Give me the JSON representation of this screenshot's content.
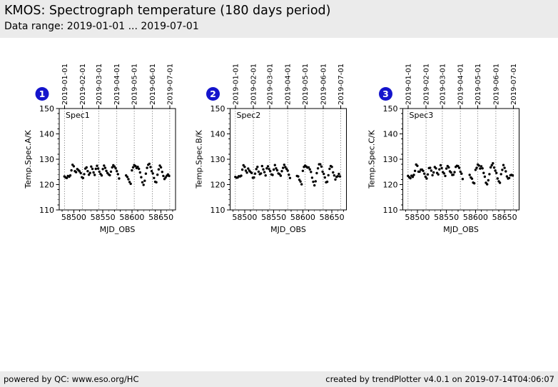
{
  "header": {
    "title": "KMOS: Spectrograph temperature (180 days period)",
    "subtitle": "Data range: 2019-01-01 ... 2019-07-01"
  },
  "footer": {
    "left": "powered by QC: www.eso.org/HC",
    "right": "created by trendPlotter v4.0.1 on 2019-07-14T04:06:07"
  },
  "colors": {
    "band_bg": "#ebebeb",
    "badge_fill": "#1414cc",
    "badge_text": "#ffffff",
    "point": "#000000",
    "grid": "#444444",
    "axis": "#000000"
  },
  "chart_data": [
    {
      "type": "scatter",
      "badge": "1",
      "panel_label": "Spec1",
      "xlabel": "MJD_OBS",
      "ylabel": "Temp.Spec.A/K",
      "xlim": [
        58475,
        58675
      ],
      "ylim": [
        110,
        150
      ],
      "xticks": [
        58500,
        58550,
        58600,
        58650
      ],
      "yticks": [
        110,
        120,
        130,
        140,
        150
      ],
      "x_minor_step": 10,
      "y_minor_step": 2,
      "grid": "vertical-dotted-at-top-axis-dates",
      "legend": "none",
      "top_axis": [
        {
          "mjd": 58484,
          "label": "2019-01-01"
        },
        {
          "mjd": 58515,
          "label": "2019-02-01"
        },
        {
          "mjd": 58543,
          "label": "2019-03-01"
        },
        {
          "mjd": 58574,
          "label": "2019-04-01"
        },
        {
          "mjd": 58604,
          "label": "2019-05-01"
        },
        {
          "mjd": 58635,
          "label": "2019-06-01"
        },
        {
          "mjd": 58665,
          "label": "2019-07-01"
        }
      ],
      "x": [
        58484,
        58486,
        58488,
        58490,
        58492,
        58494,
        58496,
        58498,
        58500,
        58502,
        58504,
        58506,
        58508,
        58510,
        58512,
        58514,
        58516,
        58518,
        58520,
        58522,
        58524,
        58526,
        58528,
        58530,
        58532,
        58534,
        58536,
        58538,
        58540,
        58542,
        58544,
        58546,
        58548,
        58550,
        58552,
        58554,
        58556,
        58558,
        58560,
        58562,
        58564,
        58566,
        58568,
        58570,
        58572,
        58574,
        58576,
        58578,
        58590,
        58592,
        58594,
        58596,
        58598,
        58600,
        58602,
        58604,
        58606,
        58608,
        58610,
        58612,
        58614,
        58616,
        58618,
        58620,
        58622,
        58624,
        58626,
        58628,
        58630,
        58632,
        58634,
        58636,
        58638,
        58640,
        58642,
        58644,
        58646,
        58648,
        58650,
        58652,
        58654,
        58656,
        58658,
        58660,
        58662,
        58664
      ],
      "y": [
        123.2,
        122.8,
        122.6,
        123.4,
        123.1,
        123.6,
        125.6,
        127.8,
        127.2,
        125.3,
        124.9,
        126.1,
        125.7,
        125.2,
        124.5,
        122.9,
        122.6,
        124.1,
        126.3,
        126.8,
        125.3,
        123.9,
        124.6,
        127.1,
        126.2,
        124.8,
        123.8,
        126.2,
        127.4,
        126.3,
        125.1,
        124.2,
        123.6,
        126.1,
        127.5,
        126.6,
        125.4,
        124.6,
        124.0,
        123.7,
        125.1,
        126.8,
        127.6,
        127.1,
        126.4,
        125.3,
        124.1,
        122.4,
        123.6,
        123.0,
        122.1,
        121.0,
        120.3,
        125.6,
        126.8,
        127.7,
        127.3,
        126.5,
        127.0,
        126.2,
        124.8,
        122.9,
        120.9,
        119.9,
        121.5,
        124.3,
        126.6,
        127.8,
        128.2,
        126.9,
        125.3,
        124.4,
        122.6,
        121.1,
        120.9,
        123.9,
        126.0,
        127.5,
        126.8,
        125.0,
        123.4,
        122.2,
        122.8,
        123.5,
        124.0,
        123.4
      ]
    },
    {
      "type": "scatter",
      "badge": "2",
      "panel_label": "Spec2",
      "xlabel": "MJD_OBS",
      "ylabel": "Temp.Spec.B/K",
      "xlim": [
        58475,
        58675
      ],
      "ylim": [
        110,
        150
      ],
      "xticks": [
        58500,
        58550,
        58600,
        58650
      ],
      "yticks": [
        110,
        120,
        130,
        140,
        150
      ],
      "x_minor_step": 10,
      "y_minor_step": 2,
      "grid": "vertical-dotted-at-top-axis-dates",
      "legend": "none",
      "top_axis": [
        {
          "mjd": 58484,
          "label": "2019-01-01"
        },
        {
          "mjd": 58515,
          "label": "2019-02-01"
        },
        {
          "mjd": 58543,
          "label": "2019-03-01"
        },
        {
          "mjd": 58574,
          "label": "2019-04-01"
        },
        {
          "mjd": 58604,
          "label": "2019-05-01"
        },
        {
          "mjd": 58635,
          "label": "2019-06-01"
        },
        {
          "mjd": 58665,
          "label": "2019-07-01"
        }
      ],
      "x": [
        58484,
        58486,
        58488,
        58490,
        58492,
        58494,
        58496,
        58498,
        58500,
        58502,
        58504,
        58506,
        58508,
        58510,
        58512,
        58514,
        58516,
        58518,
        58520,
        58522,
        58524,
        58526,
        58528,
        58530,
        58532,
        58534,
        58536,
        58538,
        58540,
        58542,
        58544,
        58546,
        58548,
        58550,
        58552,
        58554,
        58556,
        58558,
        58560,
        58562,
        58564,
        58566,
        58568,
        58570,
        58572,
        58574,
        58576,
        58578,
        58590,
        58592,
        58594,
        58596,
        58598,
        58600,
        58602,
        58604,
        58606,
        58608,
        58610,
        58612,
        58614,
        58616,
        58618,
        58620,
        58622,
        58624,
        58626,
        58628,
        58630,
        58632,
        58634,
        58636,
        58638,
        58640,
        58642,
        58644,
        58646,
        58648,
        58650,
        58652,
        58654,
        58656,
        58658,
        58660,
        58662,
        58664
      ],
      "y": [
        123.0,
        122.7,
        122.8,
        123.3,
        123.2,
        123.5,
        125.9,
        127.6,
        127.0,
        125.5,
        124.7,
        126.3,
        125.5,
        125.0,
        124.6,
        122.7,
        122.8,
        124.3,
        126.1,
        127.0,
        125.1,
        124.1,
        124.4,
        127.3,
        126.0,
        124.9,
        123.6,
        126.4,
        127.2,
        126.1,
        125.3,
        124.0,
        123.8,
        125.9,
        127.7,
        126.4,
        125.6,
        124.4,
        124.1,
        123.5,
        125.3,
        126.6,
        127.8,
        126.9,
        126.2,
        125.5,
        123.9,
        122.6,
        123.4,
        123.2,
        121.9,
        121.2,
        120.1,
        125.4,
        127.0,
        127.5,
        127.1,
        126.7,
        126.8,
        126.0,
        125.0,
        122.7,
        121.1,
        119.7,
        121.3,
        124.5,
        126.4,
        128.0,
        128.0,
        127.1,
        125.1,
        124.2,
        122.8,
        120.9,
        121.1,
        123.7,
        126.2,
        127.3,
        127.0,
        124.8,
        123.6,
        122.0,
        123.0,
        123.3,
        124.2,
        123.2
      ]
    },
    {
      "type": "scatter",
      "badge": "3",
      "panel_label": "Spec3",
      "xlabel": "MJD_OBS",
      "ylabel": "Temp.Spec.C/K",
      "xlim": [
        58475,
        58675
      ],
      "ylim": [
        110,
        150
      ],
      "xticks": [
        58500,
        58550,
        58600,
        58650
      ],
      "yticks": [
        110,
        120,
        130,
        140,
        150
      ],
      "x_minor_step": 10,
      "y_minor_step": 2,
      "grid": "vertical-dotted-at-top-axis-dates",
      "legend": "none",
      "top_axis": [
        {
          "mjd": 58484,
          "label": "2019-01-01"
        },
        {
          "mjd": 58515,
          "label": "2019-02-01"
        },
        {
          "mjd": 58543,
          "label": "2019-03-01"
        },
        {
          "mjd": 58574,
          "label": "2019-04-01"
        },
        {
          "mjd": 58604,
          "label": "2019-05-01"
        },
        {
          "mjd": 58635,
          "label": "2019-06-01"
        },
        {
          "mjd": 58665,
          "label": "2019-07-01"
        }
      ],
      "x": [
        58484,
        58486,
        58488,
        58490,
        58492,
        58494,
        58496,
        58498,
        58500,
        58502,
        58504,
        58506,
        58508,
        58510,
        58512,
        58514,
        58516,
        58518,
        58520,
        58522,
        58524,
        58526,
        58528,
        58530,
        58532,
        58534,
        58536,
        58538,
        58540,
        58542,
        58544,
        58546,
        58548,
        58550,
        58552,
        58554,
        58556,
        58558,
        58560,
        58562,
        58564,
        58566,
        58568,
        58570,
        58572,
        58574,
        58576,
        58578,
        58590,
        58592,
        58594,
        58596,
        58598,
        58600,
        58602,
        58604,
        58606,
        58608,
        58610,
        58612,
        58614,
        58616,
        58618,
        58620,
        58622,
        58624,
        58626,
        58628,
        58630,
        58632,
        58634,
        58636,
        58638,
        58640,
        58642,
        58644,
        58646,
        58648,
        58650,
        58652,
        58654,
        58656,
        58658,
        58660,
        58662,
        58664
      ],
      "y": [
        123.4,
        122.9,
        122.5,
        123.5,
        123.0,
        123.8,
        125.4,
        127.9,
        127.4,
        125.1,
        125.1,
        125.9,
        125.9,
        125.4,
        124.3,
        123.1,
        122.4,
        124.0,
        126.5,
        126.6,
        125.5,
        123.7,
        124.8,
        126.9,
        126.4,
        124.6,
        124.0,
        126.0,
        127.6,
        126.5,
        124.9,
        124.4,
        123.4,
        126.3,
        127.3,
        126.8,
        125.2,
        124.8,
        123.8,
        123.9,
        124.9,
        127.0,
        127.4,
        127.3,
        126.6,
        125.1,
        124.3,
        122.2,
        123.8,
        122.8,
        122.3,
        120.8,
        120.5,
        125.8,
        126.6,
        127.9,
        127.5,
        126.3,
        127.2,
        126.4,
        124.6,
        123.1,
        120.7,
        120.1,
        121.7,
        124.1,
        126.8,
        127.6,
        128.4,
        126.7,
        125.5,
        124.6,
        122.4,
        121.3,
        120.7,
        124.1,
        125.8,
        127.7,
        126.6,
        125.2,
        123.2,
        122.4,
        122.6,
        123.7,
        123.8,
        123.6
      ]
    }
  ]
}
